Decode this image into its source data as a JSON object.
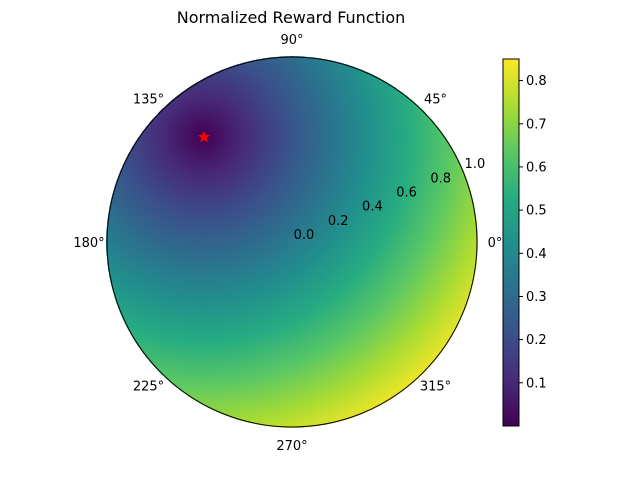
{
  "chart_data": {
    "type": "heatmap",
    "subtype": "polar",
    "title": "Normalized Reward Function",
    "theta_tick_labels": [
      "0°",
      "45°",
      "90°",
      "135°",
      "180°",
      "225°",
      "270°",
      "315°"
    ],
    "r_tick_labels": [
      "0.0",
      "0.2",
      "0.4",
      "0.6",
      "0.8",
      "1.0"
    ],
    "r_range": [
      0,
      1.0
    ],
    "colormap": "viridis",
    "colorbar": {
      "range": [
        0.0,
        0.85
      ],
      "tick_labels": [
        "0.1",
        "0.2",
        "0.3",
        "0.4",
        "0.5",
        "0.6",
        "0.7",
        "0.8"
      ]
    },
    "marker": {
      "shape": "star",
      "color": "#ff0000",
      "theta_deg": 130,
      "r": 0.74
    },
    "value_min": 0.0,
    "value_max": 0.85
  }
}
